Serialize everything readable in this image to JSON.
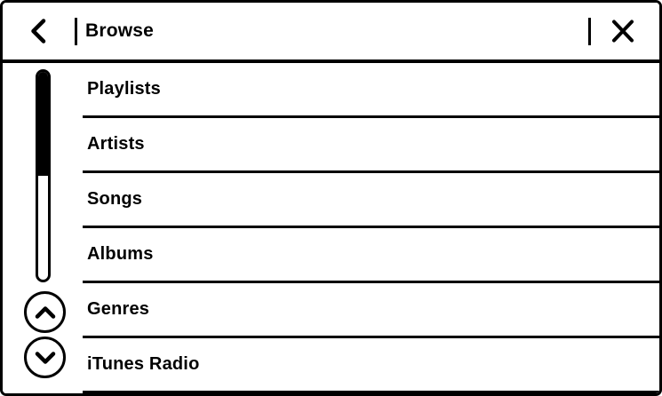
{
  "header": {
    "title": "Browse",
    "back_icon": "chevron-left",
    "close_icon": "x"
  },
  "list": {
    "items": [
      "Playlists",
      "Artists",
      "Songs",
      "Albums",
      "Genres",
      "iTunes Radio"
    ]
  },
  "scrollbar": {
    "fill_percent": 50,
    "up_icon": "chevron-up",
    "down_icon": "chevron-down"
  },
  "colors": {
    "foreground": "#000000",
    "background": "#ffffff"
  }
}
